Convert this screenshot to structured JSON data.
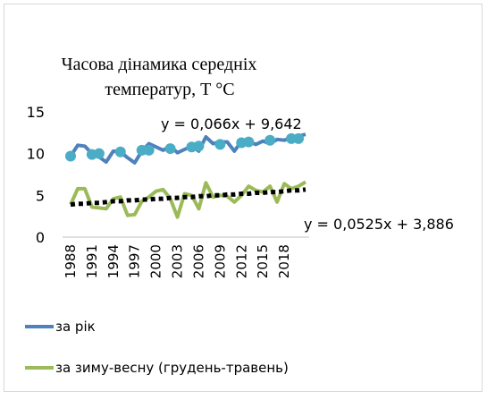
{
  "chart_data": {
    "type": "line",
    "title": "Часова дінамика середніх температур, Т °С",
    "categories": [
      "1988",
      null,
      null,
      "1991",
      null,
      null,
      "1994",
      null,
      null,
      "1997",
      null,
      null,
      "2000",
      null,
      null,
      "2003",
      null,
      null,
      "2006",
      null,
      null,
      "2009",
      null,
      null,
      "2012",
      null,
      null,
      "2015",
      null,
      null,
      "2018",
      null,
      null,
      null
    ],
    "series": [
      {
        "name": "за рік",
        "color": "#4f81bd",
        "values": [
          9.7,
          11.0,
          10.9,
          10.0,
          9.6,
          9.0,
          10.3,
          10.2,
          9.5,
          8.9,
          10.3,
          11.2,
          10.8,
          10.4,
          10.9,
          10.1,
          10.5,
          10.9,
          10.3,
          12.0,
          11.2,
          11.4,
          11.4,
          10.3,
          11.5,
          11.5,
          11.1,
          11.5,
          11.2,
          11.7,
          11.6,
          11.9,
          12.1,
          12.3
        ]
      },
      {
        "name": "за зиму-весну (грудень-травень)",
        "color": "#9bbb59",
        "values": [
          3.9,
          5.8,
          5.8,
          3.6,
          3.5,
          3.4,
          4.6,
          4.8,
          2.6,
          2.7,
          4.3,
          4.8,
          5.5,
          5.7,
          4.6,
          2.4,
          5.2,
          5.0,
          3.4,
          6.5,
          4.8,
          5.0,
          4.9,
          4.2,
          5.0,
          6.1,
          5.6,
          5.4,
          6.1,
          4.2,
          6.4,
          5.8,
          6.1,
          6.6
        ]
      }
    ],
    "trendlines": [
      {
        "label": "y = 0,066x + 9,642",
        "color": "#4bacc6",
        "style": "markers",
        "values": [
          9.7,
          9.8,
          9.8,
          9.9,
          10.0,
          10.0,
          10.1,
          10.2,
          10.2,
          10.3,
          10.4,
          10.4,
          10.5,
          10.6,
          10.6,
          10.7,
          10.8,
          10.8,
          10.9,
          11.0,
          11.0,
          11.1,
          11.2,
          11.2,
          11.3,
          11.4,
          11.4,
          11.5,
          11.6,
          11.6,
          11.7,
          11.8,
          11.8,
          11.9
        ]
      },
      {
        "label": "y = 0,0525x + 3,886",
        "color": "#000000",
        "style": "dotted",
        "values": [
          3.9,
          4.0,
          4.0,
          4.1,
          4.1,
          4.2,
          4.3,
          4.3,
          4.4,
          4.4,
          4.5,
          4.5,
          4.6,
          4.6,
          4.7,
          4.7,
          4.8,
          4.8,
          4.9,
          4.9,
          5.0,
          5.0,
          5.1,
          5.1,
          5.2,
          5.2,
          5.3,
          5.3,
          5.4,
          5.4,
          5.5,
          5.6,
          5.6,
          5.7
        ]
      }
    ],
    "ylim": [
      0,
      15
    ],
    "yticks": [
      0,
      5,
      10,
      15
    ],
    "grid": false
  }
}
